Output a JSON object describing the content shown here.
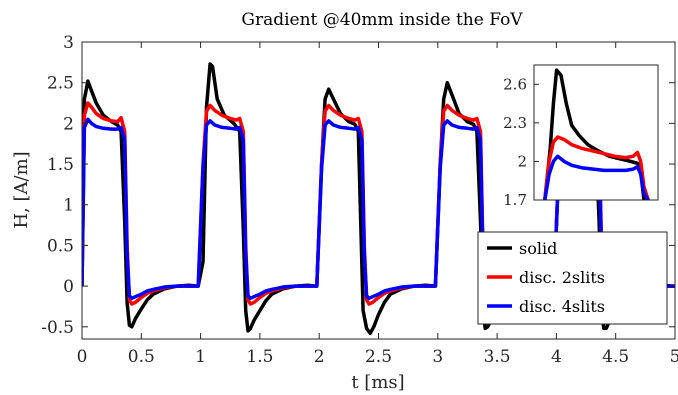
{
  "chart_data": {
    "type": "line",
    "title": "Gradient @40mm inside the FoV",
    "xlabel": "t [ms]",
    "ylabel": "H, [A/m]",
    "xlim": [
      0,
      5
    ],
    "ylim": [
      -0.65,
      3
    ],
    "xticks": [
      "0",
      "0.5",
      "1",
      "1.5",
      "2",
      "2.5",
      "3",
      "3.5",
      "4",
      "4.5",
      "5"
    ],
    "yticks": [
      "-0.5",
      "0",
      "0.5",
      "1",
      "1.5",
      "2",
      "2.5",
      "3"
    ],
    "grid": false,
    "legend_position": "bottom-right",
    "series": [
      {
        "name": "solid",
        "color": "#000000",
        "x": [
          0,
          0.02,
          0.05,
          0.08,
          0.12,
          0.18,
          0.25,
          0.3,
          0.33,
          0.36,
          0.38,
          0.4,
          0.42,
          0.45,
          0.5,
          0.55,
          0.6,
          0.7,
          0.8,
          0.9,
          0.98,
          1.02,
          1.05,
          1.08,
          1.1,
          1.14,
          1.2,
          1.28,
          1.33,
          1.36,
          1.38,
          1.4,
          1.42,
          1.45,
          1.5,
          1.55,
          1.6,
          1.7,
          1.8,
          1.9,
          1.98,
          2.02,
          2.05,
          2.08,
          2.12,
          2.18,
          2.25,
          2.3,
          2.33,
          2.35,
          2.37,
          2.4,
          2.43,
          2.46,
          2.5,
          2.55,
          2.6,
          2.7,
          2.8,
          2.9,
          2.98,
          3.02,
          3.05,
          3.08,
          3.12,
          3.18,
          3.25,
          3.3,
          3.33,
          3.36,
          3.38,
          3.4,
          3.42,
          3.45,
          3.5,
          3.55,
          3.6,
          3.7,
          3.8,
          3.9,
          3.98,
          4.02,
          4.05,
          4.08,
          4.12,
          4.18,
          4.25,
          4.3,
          4.33,
          4.36,
          4.38,
          4.4,
          4.42,
          4.45,
          4.5,
          4.55,
          4.6,
          4.7,
          4.8,
          4.9,
          4.98,
          5.0
        ],
        "y": [
          0,
          2.3,
          2.52,
          2.4,
          2.25,
          2.1,
          2.02,
          1.98,
          1.9,
          0.8,
          -0.2,
          -0.48,
          -0.5,
          -0.4,
          -0.28,
          -0.17,
          -0.1,
          -0.03,
          0,
          0.01,
          0,
          0.3,
          2.2,
          2.73,
          2.7,
          2.3,
          2.1,
          2.0,
          1.9,
          0.7,
          -0.3,
          -0.55,
          -0.52,
          -0.42,
          -0.3,
          -0.18,
          -0.1,
          -0.03,
          0,
          0.01,
          0,
          1.5,
          2.3,
          2.42,
          2.3,
          2.12,
          2.02,
          1.99,
          1.9,
          0.8,
          -0.3,
          -0.52,
          -0.58,
          -0.5,
          -0.35,
          -0.2,
          -0.1,
          -0.03,
          0,
          0.01,
          0,
          1.5,
          2.3,
          2.5,
          2.35,
          2.12,
          2.02,
          1.99,
          1.9,
          0.8,
          -0.3,
          -0.52,
          -0.5,
          -0.42,
          -0.3,
          -0.18,
          -0.1,
          -0.03,
          0,
          0.01,
          0,
          1.5,
          2.3,
          2.5,
          2.35,
          2.12,
          2.02,
          1.99,
          1.9,
          0.8,
          -0.3,
          -0.52,
          -0.52,
          -0.42,
          -0.3,
          -0.18,
          -0.1,
          -0.03,
          0,
          0.01,
          0,
          0
        ]
      },
      {
        "name": "disc. 2slits",
        "color": "#ff0000",
        "x": [
          0,
          0.02,
          0.05,
          0.08,
          0.12,
          0.18,
          0.25,
          0.3,
          0.33,
          0.36,
          0.38,
          0.4,
          0.42,
          0.45,
          0.5,
          0.55,
          0.6,
          0.7,
          0.8,
          0.9,
          0.98,
          1.02,
          1.05,
          1.08,
          1.12,
          1.18,
          1.25,
          1.3,
          1.33,
          1.36,
          1.38,
          1.4,
          1.42,
          1.45,
          1.5,
          1.55,
          1.6,
          1.7,
          1.8,
          1.9,
          1.98,
          2.02,
          2.05,
          2.08,
          2.12,
          2.18,
          2.25,
          2.3,
          2.33,
          2.36,
          2.38,
          2.4,
          2.42,
          2.45,
          2.5,
          2.55,
          2.6,
          2.7,
          2.8,
          2.9,
          2.98,
          3.02,
          3.05,
          3.08,
          3.12,
          3.18,
          3.25,
          3.3,
          3.33,
          3.36,
          3.38,
          3.4,
          3.42,
          3.45,
          3.5,
          3.55,
          3.6,
          3.7,
          3.8,
          3.9,
          3.98,
          4.02,
          4.05,
          4.08,
          4.12,
          4.18,
          4.25,
          4.3,
          4.33,
          4.36,
          4.38,
          4.4,
          4.42,
          4.45,
          4.5,
          4.55,
          4.6,
          4.7,
          4.8,
          4.9,
          4.98,
          5.0
        ],
        "y": [
          0,
          2.1,
          2.25,
          2.2,
          2.12,
          2.06,
          2.03,
          2.02,
          2.07,
          1.9,
          0.5,
          -0.17,
          -0.22,
          -0.2,
          -0.14,
          -0.09,
          -0.06,
          -0.02,
          0,
          0,
          0,
          1.5,
          2.15,
          2.22,
          2.16,
          2.1,
          2.06,
          2.04,
          2.06,
          1.9,
          0.5,
          -0.17,
          -0.22,
          -0.2,
          -0.14,
          -0.09,
          -0.06,
          -0.02,
          0,
          0,
          0,
          1.5,
          2.15,
          2.22,
          2.16,
          2.1,
          2.06,
          2.04,
          2.06,
          1.9,
          0.5,
          -0.17,
          -0.22,
          -0.2,
          -0.14,
          -0.09,
          -0.06,
          -0.02,
          0,
          0,
          0,
          1.5,
          2.15,
          2.22,
          2.16,
          2.1,
          2.06,
          2.04,
          2.06,
          1.9,
          0.5,
          -0.17,
          -0.22,
          -0.2,
          -0.14,
          -0.09,
          -0.06,
          -0.02,
          0,
          0,
          0,
          1.5,
          2.15,
          2.2,
          2.15,
          2.09,
          2.05,
          2.03,
          2.06,
          1.9,
          0.5,
          -0.17,
          -0.22,
          -0.2,
          -0.14,
          -0.09,
          -0.06,
          -0.02,
          0,
          0,
          0,
          0
        ]
      },
      {
        "name": "disc. 4slits",
        "color": "#0000ff",
        "x": [
          0,
          0.02,
          0.05,
          0.08,
          0.12,
          0.18,
          0.25,
          0.3,
          0.33,
          0.36,
          0.38,
          0.4,
          0.42,
          0.45,
          0.5,
          0.55,
          0.6,
          0.7,
          0.8,
          0.9,
          0.98,
          1.02,
          1.05,
          1.08,
          1.12,
          1.18,
          1.25,
          1.3,
          1.33,
          1.36,
          1.38,
          1.4,
          1.42,
          1.45,
          1.5,
          1.55,
          1.6,
          1.7,
          1.8,
          1.9,
          1.98,
          2.02,
          2.05,
          2.08,
          2.12,
          2.18,
          2.25,
          2.3,
          2.33,
          2.36,
          2.38,
          2.4,
          2.42,
          2.45,
          2.5,
          2.55,
          2.6,
          2.7,
          2.8,
          2.9,
          2.98,
          3.02,
          3.05,
          3.08,
          3.12,
          3.18,
          3.25,
          3.3,
          3.33,
          3.36,
          3.38,
          3.4,
          3.42,
          3.45,
          3.5,
          3.55,
          3.6,
          3.7,
          3.8,
          3.9,
          3.98,
          4.02,
          4.05,
          4.08,
          4.12,
          4.18,
          4.25,
          4.3,
          4.33,
          4.36,
          4.38,
          4.4,
          4.42,
          4.45,
          4.5,
          4.55,
          4.6,
          4.7,
          4.8,
          4.9,
          4.98,
          5.0
        ],
        "y": [
          0,
          1.95,
          2.05,
          2.0,
          1.96,
          1.94,
          1.93,
          1.93,
          1.95,
          1.8,
          0.4,
          -0.12,
          -0.15,
          -0.13,
          -0.1,
          -0.06,
          -0.04,
          -0.01,
          0,
          0,
          0,
          1.45,
          1.98,
          2.03,
          1.98,
          1.95,
          1.94,
          1.93,
          1.95,
          1.8,
          0.4,
          -0.12,
          -0.15,
          -0.13,
          -0.1,
          -0.06,
          -0.04,
          -0.01,
          0,
          0,
          0,
          1.45,
          1.98,
          2.03,
          1.98,
          1.95,
          1.94,
          1.93,
          1.95,
          1.8,
          0.4,
          -0.12,
          -0.15,
          -0.13,
          -0.1,
          -0.06,
          -0.04,
          -0.01,
          0,
          0,
          0,
          1.45,
          1.98,
          2.03,
          1.98,
          1.95,
          1.94,
          1.93,
          1.95,
          1.8,
          0.4,
          -0.12,
          -0.15,
          -0.13,
          -0.1,
          -0.06,
          -0.04,
          -0.01,
          0,
          0,
          0,
          1.45,
          1.98,
          2.02,
          1.97,
          1.94,
          1.93,
          1.93,
          1.95,
          1.8,
          0.4,
          -0.12,
          -0.15,
          -0.13,
          -0.1,
          -0.06,
          -0.04,
          -0.01,
          0,
          0,
          0,
          0
        ]
      }
    ],
    "inset": {
      "xlim": [
        3.7,
        4.85
      ],
      "ylim": [
        1.7,
        2.75
      ],
      "yticks": [
        "2.6",
        "2.3",
        "2",
        "1.7"
      ],
      "series": [
        {
          "name": "solid",
          "color": "#000000",
          "x": [
            3.8,
            3.85,
            3.88,
            3.91,
            3.95,
            4.0,
            4.05,
            4.12,
            4.2,
            4.3,
            4.4,
            4.5,
            4.6,
            4.68,
            4.72,
            4.76
          ],
          "y": [
            1.7,
            2.1,
            2.45,
            2.71,
            2.67,
            2.45,
            2.28,
            2.2,
            2.13,
            2.08,
            2.04,
            2.02,
            2.0,
            1.98,
            1.7,
            1.7
          ]
        },
        {
          "name": "disc. 2slits",
          "color": "#ff0000",
          "x": [
            3.8,
            3.84,
            3.88,
            3.92,
            3.98,
            4.05,
            4.15,
            4.25,
            4.35,
            4.45,
            4.55,
            4.62,
            4.66,
            4.69,
            4.72,
            4.76
          ],
          "y": [
            1.7,
            2.0,
            2.15,
            2.19,
            2.17,
            2.13,
            2.1,
            2.08,
            2.06,
            2.04,
            2.03,
            2.04,
            2.07,
            2.0,
            1.8,
            1.7
          ]
        },
        {
          "name": "disc. 4slits",
          "color": "#0000ff",
          "x": [
            3.8,
            3.84,
            3.88,
            3.92,
            3.98,
            4.05,
            4.15,
            4.25,
            4.35,
            4.45,
            4.55,
            4.62,
            4.66,
            4.69,
            4.72,
            4.76
          ],
          "y": [
            1.7,
            1.9,
            2.0,
            2.04,
            2.0,
            1.97,
            1.95,
            1.94,
            1.93,
            1.93,
            1.93,
            1.94,
            1.96,
            1.9,
            1.75,
            1.7
          ]
        }
      ]
    }
  }
}
